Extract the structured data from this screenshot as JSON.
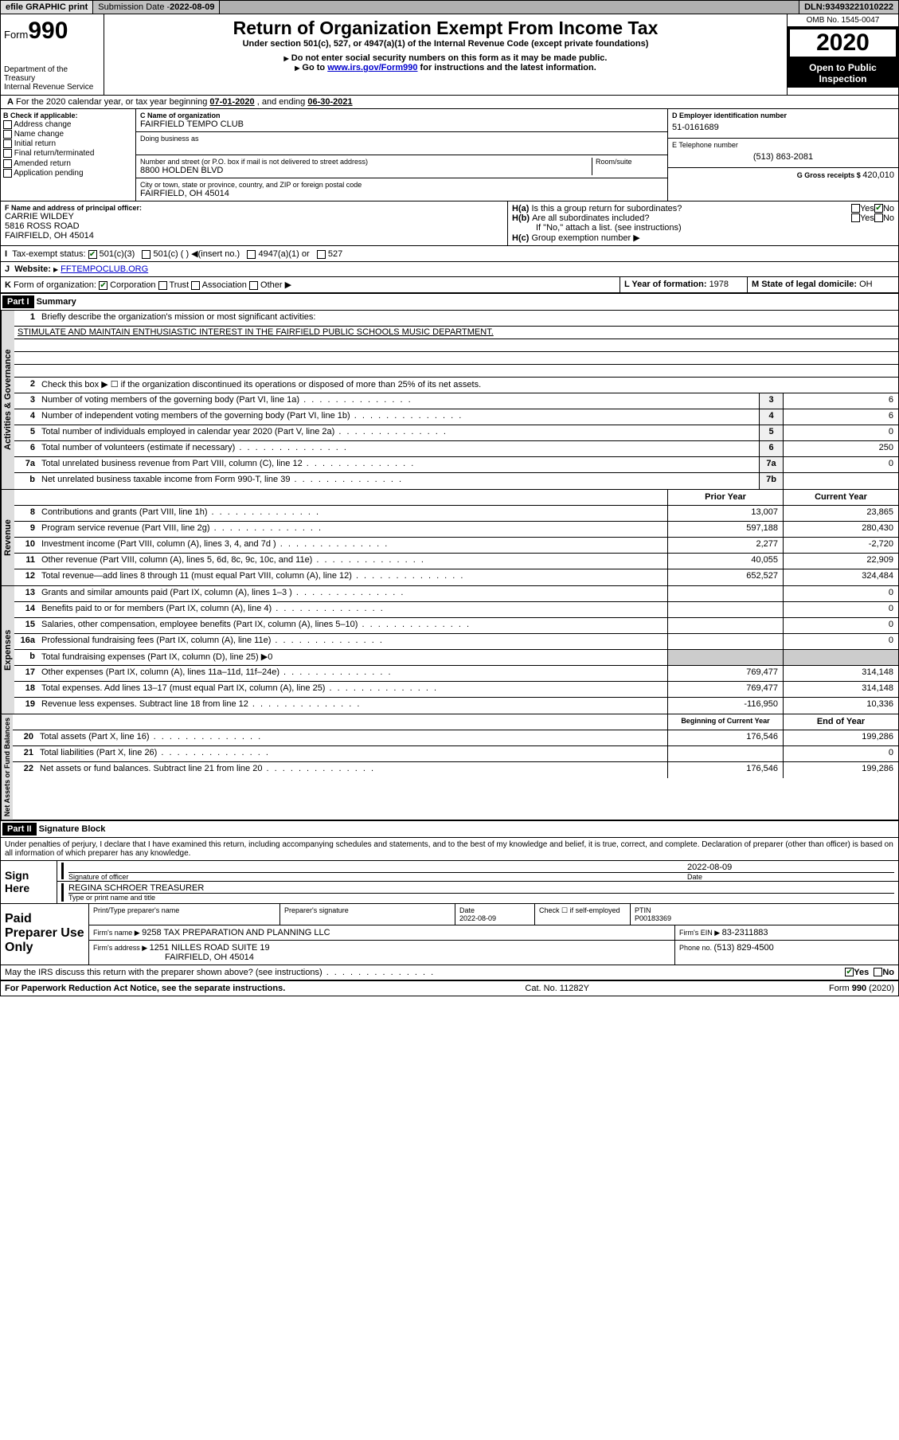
{
  "topbar": {
    "efile": "efile GRAPHIC print",
    "subdate_label": "Submission Date - ",
    "subdate": "2022-08-09",
    "dln_label": "DLN: ",
    "dln": "93493221010222"
  },
  "header": {
    "form_word": "Form",
    "form_num": "990",
    "dept": "Department of the Treasury\nInternal Revenue Service",
    "title": "Return of Organization Exempt From Income Tax",
    "subtitle": "Under section 501(c), 527, or 4947(a)(1) of the Internal Revenue Code (except private foundations)",
    "ssn_note": "Do not enter social security numbers on this form as it may be made public.",
    "goto": "Go to ",
    "goto_link": "www.irs.gov/Form990",
    "goto_after": " for instructions and the latest information.",
    "omb": "OMB No. 1545-0047",
    "year": "2020",
    "inspect": "Open to Public Inspection"
  },
  "A": {
    "text": "For the 2020 calendar year, or tax year beginning ",
    "begin": "07-01-2020",
    "mid": " , and ending ",
    "end": "06-30-2021"
  },
  "B": {
    "label": "B Check if applicable:",
    "opts": [
      "Address change",
      "Name change",
      "Initial return",
      "Final return/terminated",
      "Amended return",
      "Application pending"
    ]
  },
  "C": {
    "name_label": "C Name of organization",
    "name": "FAIRFIELD TEMPO CLUB",
    "dba_label": "Doing business as",
    "street_label": "Number and street (or P.O. box if mail is not delivered to street address)",
    "room_label": "Room/suite",
    "street": "8800 HOLDEN BLVD",
    "city_label": "City or town, state or province, country, and ZIP or foreign postal code",
    "city": "FAIRFIELD, OH  45014"
  },
  "D": {
    "label": "D Employer identification number",
    "val": "51-0161689"
  },
  "E": {
    "label": "E Telephone number",
    "val": "(513) 863-2081"
  },
  "G": {
    "label": "G Gross receipts $ ",
    "val": "420,010"
  },
  "F": {
    "label": "F  Name and address of principal officer:",
    "name": "CARRIE WILDEY",
    "street": "5816 ROSS ROAD",
    "city": "FAIRFIELD, OH  45014"
  },
  "H": {
    "a": "Is this a group return for subordinates?",
    "b": "Are all subordinates included?",
    "b_note": "If \"No,\" attach a list. (see instructions)",
    "c": "Group exemption number "
  },
  "I": {
    "label": "Tax-exempt status:",
    "opts": [
      "501(c)(3)",
      "501(c) (  ) ◀(insert no.)",
      "4947(a)(1) or",
      "527"
    ]
  },
  "J": {
    "label": "Website: ",
    "val": "FFTEMPOCLUB.ORG"
  },
  "K": {
    "label": "Form of organization:",
    "opts": [
      "Corporation",
      "Trust",
      "Association",
      "Other ▶"
    ]
  },
  "L": {
    "label": "L Year of formation: ",
    "val": "1978"
  },
  "M": {
    "label": "M State of legal domicile: ",
    "val": "OH"
  },
  "part1": {
    "title": "Part I",
    "sub": "Summary",
    "q1": "Briefly describe the organization's mission or most significant activities:",
    "mission": "STIMULATE AND MAINTAIN ENTHUSIASTIC INTEREST IN THE FAIRFIELD PUBLIC SCHOOLS MUSIC DEPARTMENT.",
    "q2": "Check this box ▶ ☐  if the organization discontinued its operations or disposed of more than 25% of its net assets.",
    "lines_gov": [
      {
        "n": "3",
        "d": "Number of voting members of the governing body (Part VI, line 1a)",
        "box": "3",
        "v": "6"
      },
      {
        "n": "4",
        "d": "Number of independent voting members of the governing body (Part VI, line 1b)",
        "box": "4",
        "v": "6"
      },
      {
        "n": "5",
        "d": "Total number of individuals employed in calendar year 2020 (Part V, line 2a)",
        "box": "5",
        "v": "0"
      },
      {
        "n": "6",
        "d": "Total number of volunteers (estimate if necessary)",
        "box": "6",
        "v": "250"
      },
      {
        "n": "7a",
        "d": "Total unrelated business revenue from Part VIII, column (C), line 12",
        "box": "7a",
        "v": "0"
      },
      {
        "n": "b",
        "d": "Net unrelated business taxable income from Form 990-T, line 39",
        "box": "7b",
        "v": ""
      }
    ],
    "col_prior": "Prior Year",
    "col_curr": "Current Year",
    "lines_rev": [
      {
        "n": "8",
        "d": "Contributions and grants (Part VIII, line 1h)",
        "p": "13,007",
        "c": "23,865"
      },
      {
        "n": "9",
        "d": "Program service revenue (Part VIII, line 2g)",
        "p": "597,188",
        "c": "280,430"
      },
      {
        "n": "10",
        "d": "Investment income (Part VIII, column (A), lines 3, 4, and 7d )",
        "p": "2,277",
        "c": "-2,720"
      },
      {
        "n": "11",
        "d": "Other revenue (Part VIII, column (A), lines 5, 6d, 8c, 9c, 10c, and 11e)",
        "p": "40,055",
        "c": "22,909"
      },
      {
        "n": "12",
        "d": "Total revenue—add lines 8 through 11 (must equal Part VIII, column (A), line 12)",
        "p": "652,527",
        "c": "324,484"
      }
    ],
    "lines_exp": [
      {
        "n": "13",
        "d": "Grants and similar amounts paid (Part IX, column (A), lines 1–3 )",
        "p": "",
        "c": "0"
      },
      {
        "n": "14",
        "d": "Benefits paid to or for members (Part IX, column (A), line 4)",
        "p": "",
        "c": "0"
      },
      {
        "n": "15",
        "d": "Salaries, other compensation, employee benefits (Part IX, column (A), lines 5–10)",
        "p": "",
        "c": "0"
      },
      {
        "n": "16a",
        "d": "Professional fundraising fees (Part IX, column (A), line 11e)",
        "p": "",
        "c": "0"
      },
      {
        "n": "b",
        "d": "Total fundraising expenses (Part IX, column (D), line 25) ▶0",
        "p": "—",
        "c": "—"
      },
      {
        "n": "17",
        "d": "Other expenses (Part IX, column (A), lines 11a–11d, 11f–24e)",
        "p": "769,477",
        "c": "314,148"
      },
      {
        "n": "18",
        "d": "Total expenses. Add lines 13–17 (must equal Part IX, column (A), line 25)",
        "p": "769,477",
        "c": "314,148"
      },
      {
        "n": "19",
        "d": "Revenue less expenses. Subtract line 18 from line 12",
        "p": "-116,950",
        "c": "10,336"
      }
    ],
    "col_begin": "Beginning of Current Year",
    "col_end": "End of Year",
    "lines_net": [
      {
        "n": "20",
        "d": "Total assets (Part X, line 16)",
        "p": "176,546",
        "c": "199,286"
      },
      {
        "n": "21",
        "d": "Total liabilities (Part X, line 26)",
        "p": "",
        "c": "0"
      },
      {
        "n": "22",
        "d": "Net assets or fund balances. Subtract line 21 from line 20",
        "p": "176,546",
        "c": "199,286"
      }
    ],
    "vtabs": [
      "Activities & Governance",
      "Revenue",
      "Expenses",
      "Net Assets or Fund Balances"
    ]
  },
  "part2": {
    "title": "Part II",
    "sub": "Signature Block",
    "decl": "Under penalties of perjury, I declare that I have examined this return, including accompanying schedules and statements, and to the best of my knowledge and belief, it is true, correct, and complete. Declaration of preparer (other than officer) is based on all information of which preparer has any knowledge.",
    "sign_here": "Sign Here",
    "sig_officer": "Signature of officer",
    "date_label": "Date",
    "sig_date": "2022-08-09",
    "name_title": "REGINA SCHROER  TREASURER",
    "type_label": "Type or print name and title",
    "paid": "Paid Preparer Use Only",
    "h_print": "Print/Type preparer's name",
    "h_sig": "Preparer's signature",
    "h_date": "Date",
    "p_date": "2022-08-09",
    "h_check": "Check ☐ if self-employed",
    "h_ptin": "PTIN",
    "ptin": "P00183369",
    "firm_name_l": "Firm's name    ▶ ",
    "firm_name": "9258 TAX PREPARATION AND PLANNING LLC",
    "firm_ein_l": "Firm's EIN ▶ ",
    "firm_ein": "83-2311883",
    "firm_addr_l": "Firm's address ▶ ",
    "firm_addr1": "1251 NILLES ROAD SUITE 19",
    "firm_addr2": "FAIRFIELD, OH  45014",
    "phone_l": "Phone no. ",
    "phone": "(513) 829-4500",
    "discuss": "May the IRS discuss this return with the preparer shown above? (see instructions)"
  },
  "footer": {
    "left": "For Paperwork Reduction Act Notice, see the separate instructions.",
    "mid": "Cat. No. 11282Y",
    "right": "Form 990 (2020)"
  }
}
